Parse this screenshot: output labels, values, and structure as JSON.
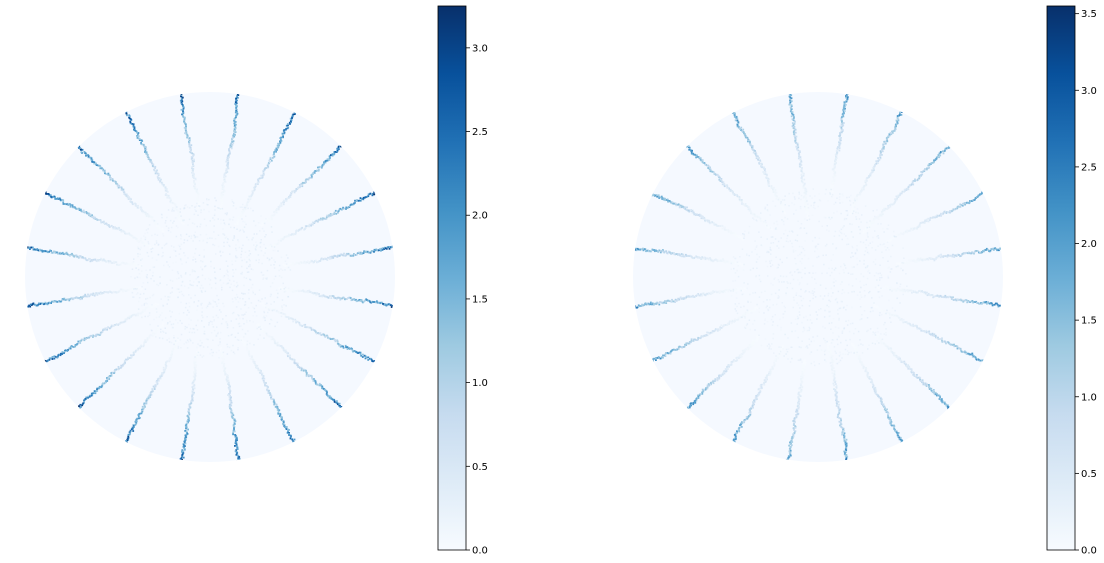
{
  "chart_data": [
    {
      "type": "heatmap",
      "title": "",
      "domain_shape": "disk",
      "colormap": "Blues",
      "colors": {
        "low": "#f7fbff",
        "high": "#08306b"
      },
      "crack_count": 20,
      "crack_intensity": 3.0,
      "inner_spread": 0.38,
      "value_range": [
        0,
        3.25
      ],
      "colorbar": {
        "ticks": [
          0.0,
          0.5,
          1.0,
          1.5,
          2.0,
          2.5,
          3.0
        ],
        "tick_labels": [
          "0.0",
          "0.5",
          "1.0",
          "1.5",
          "2.0",
          "2.5",
          "3.0"
        ]
      }
    },
    {
      "type": "heatmap",
      "title": "",
      "domain_shape": "disk",
      "colormap": "Blues",
      "colors": {
        "low": "#f7fbff",
        "high": "#08306b"
      },
      "crack_count": 20,
      "crack_intensity": 2.4,
      "inner_spread": 0.42,
      "value_range": [
        0,
        3.55
      ],
      "colorbar": {
        "ticks": [
          0.0,
          0.5,
          1.0,
          1.5,
          2.0,
          2.5,
          3.0,
          3.5
        ],
        "tick_labels": [
          "0.0",
          "0.5",
          "1.0",
          "1.5",
          "2.0",
          "2.5",
          "3.0",
          "3.5"
        ]
      }
    }
  ]
}
